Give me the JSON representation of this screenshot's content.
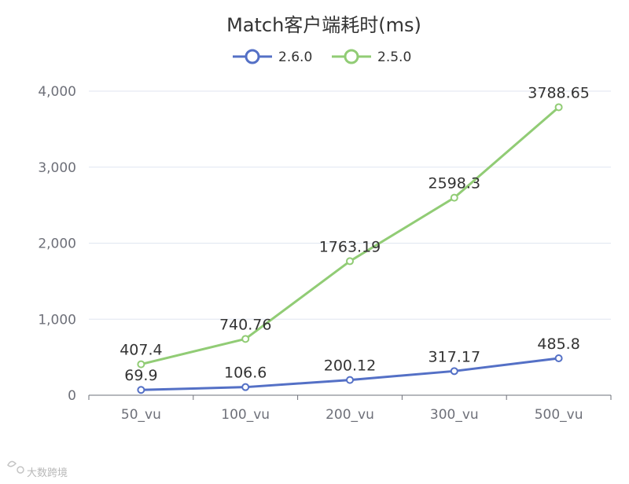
{
  "chart_data": {
    "type": "line",
    "title": "Match客户端耗时(ms)",
    "categories": [
      "50_vu",
      "100_vu",
      "200_vu",
      "300_vu",
      "500_vu"
    ],
    "series": [
      {
        "name": "2.6.0",
        "color": "#5470c6",
        "values": [
          69.9,
          106.6,
          200.12,
          317.17,
          485.8
        ],
        "labels": [
          "69.9",
          "106.6",
          "200.12",
          "317.17",
          "485.8"
        ]
      },
      {
        "name": "2.5.0",
        "color": "#91cc75",
        "values": [
          407.4,
          740.76,
          1763.19,
          2598.3,
          3788.65
        ],
        "labels": [
          "407.4",
          "740.76",
          "1763.19",
          "2598.3",
          "3788.65"
        ]
      }
    ],
    "yticks": [
      0,
      1000,
      2000,
      3000,
      4000
    ],
    "ytick_labels": [
      "0",
      "1,000",
      "2,000",
      "3,000",
      "4,000"
    ],
    "ylim": [
      0,
      4000
    ],
    "grid": "horizontal",
    "legend": "top-center"
  },
  "watermark": "大数跨境"
}
